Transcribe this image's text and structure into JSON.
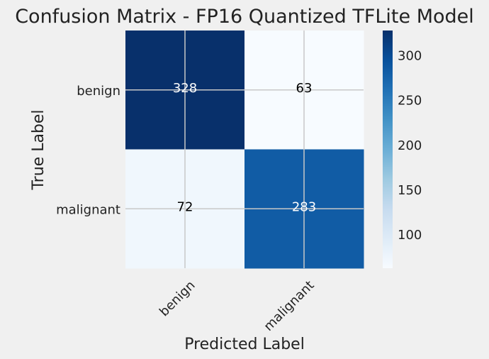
{
  "chart_data": {
    "type": "heatmap",
    "title": "Confusion Matrix - FP16 Quantized TFLite Model",
    "xlabel": "Predicted Label",
    "ylabel": "True Label",
    "x_categories": [
      "benign",
      "malignant"
    ],
    "y_categories": [
      "benign",
      "malignant"
    ],
    "values": [
      [
        328,
        63
      ],
      [
        72,
        283
      ]
    ],
    "colormap": "Blues",
    "colorbar": {
      "vmin": 63,
      "vmax": 328,
      "ticks": [
        100,
        150,
        200,
        250,
        300
      ]
    },
    "grid": true
  }
}
